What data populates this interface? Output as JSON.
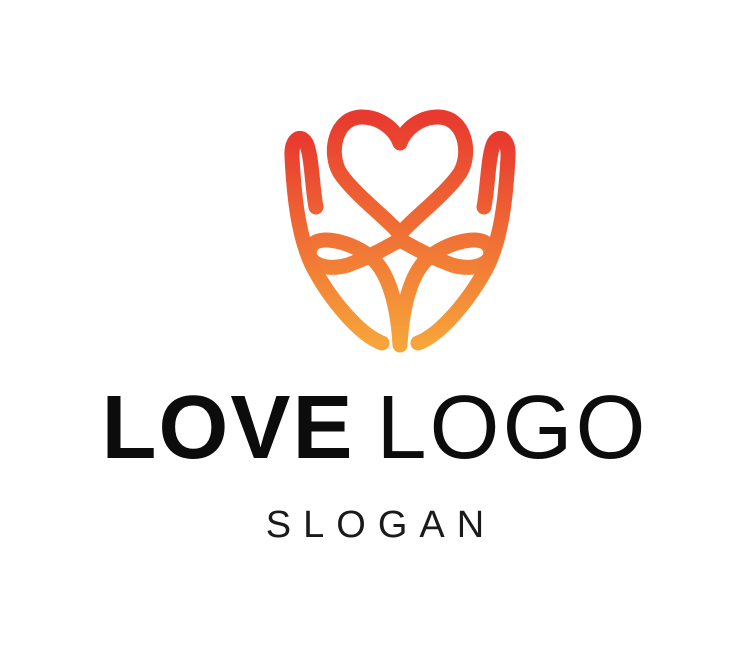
{
  "logo": {
    "brand_bold": "LOVE",
    "brand_light": "LOGO",
    "slogan": "SLOGAN",
    "emblem_icon": "hands-holding-heart-icon",
    "colors": {
      "gradient_top": "#e83a2f",
      "gradient_bottom": "#f7a43a",
      "text": "#0c0c0c",
      "background": "#ffffff"
    }
  }
}
